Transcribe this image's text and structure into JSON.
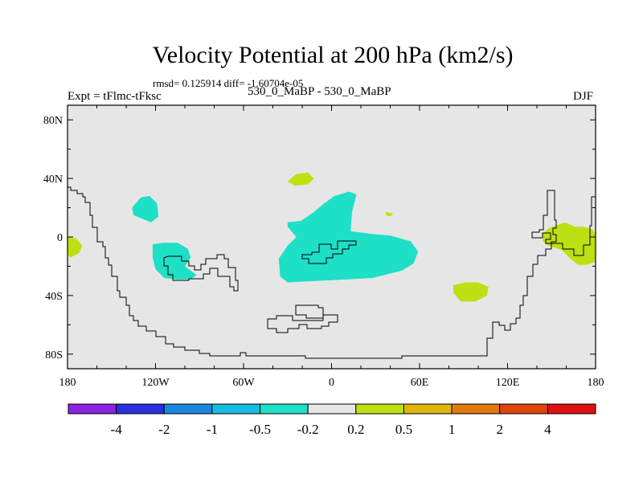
{
  "chart_data": {
    "type": "heatmap",
    "title": "Velocity Potential at 200 hPa (km2/s)",
    "stats": "rmsd= 0.125914 diff= -1.60704e-05",
    "left_label": "Expt = tFlmc-tFksc",
    "center_label": "530_0_MaBP - 530_0_MaBP",
    "right_label": "DJF",
    "x_ticks": [
      {
        "lon": -180,
        "label": "180"
      },
      {
        "lon": -120,
        "label": "120W"
      },
      {
        "lon": -60,
        "label": "60W"
      },
      {
        "lon": 0,
        "label": "0"
      },
      {
        "lon": 60,
        "label": "60E"
      },
      {
        "lon": 120,
        "label": "120E"
      },
      {
        "lon": 180,
        "label": "180"
      }
    ],
    "y_ticks": [
      {
        "lat": 80,
        "label": "80N"
      },
      {
        "lat": 40,
        "label": "40N"
      },
      {
        "lat": 0,
        "label": "0"
      },
      {
        "lat": -40,
        "label": "40S"
      },
      {
        "lat": -80,
        "label": "80S"
      }
    ],
    "xlim": [
      -180,
      180
    ],
    "ylim": [
      -90,
      90
    ],
    "colorbar": {
      "colors": [
        "#8b24e0",
        "#2a2fe0",
        "#1a86e0",
        "#16bde0",
        "#1de0c6",
        "#e6e6e6",
        "#bde012",
        "#e0b40a",
        "#e07a0a",
        "#e0450a",
        "#e01010"
      ],
      "labels": [
        "-4",
        "-2",
        "-1",
        "-0.5",
        "-0.2",
        "0.2",
        "0.5",
        "1",
        "2",
        "4"
      ]
    },
    "regions": [
      {
        "name": "neg-central-pacific",
        "level": "-0.5 to -0.2",
        "color": "#1de0c6",
        "points": [
          [
            -136,
            20
          ],
          [
            -130,
            27
          ],
          [
            -124,
            28
          ],
          [
            -119,
            23
          ],
          [
            -118,
            14
          ],
          [
            -123,
            10
          ],
          [
            -128,
            12
          ],
          [
            -135,
            15
          ]
        ]
      },
      {
        "name": "neg-south-america-west",
        "level": "-0.5 to -0.2",
        "color": "#1de0c6",
        "points": [
          [
            -122,
            -5
          ],
          [
            -115,
            -4
          ],
          [
            -105,
            -4
          ],
          [
            -98,
            -8
          ],
          [
            -96,
            -14
          ],
          [
            -100,
            -20
          ],
          [
            -92,
            -26
          ],
          [
            -96,
            -29
          ],
          [
            -106,
            -29
          ],
          [
            -114,
            -28
          ],
          [
            -120,
            -22
          ],
          [
            -122,
            -14
          ]
        ]
      },
      {
        "name": "neg-africa",
        "level": "-0.5 to -0.2",
        "color": "#1de0c6",
        "points": [
          [
            -30,
            10
          ],
          [
            -21,
            11
          ],
          [
            -12,
            17
          ],
          [
            -5,
            23
          ],
          [
            2,
            28
          ],
          [
            12,
            31
          ],
          [
            17,
            29
          ],
          [
            14,
            17
          ],
          [
            13,
            4
          ],
          [
            28,
            2
          ],
          [
            40,
            1
          ],
          [
            54,
            -3
          ],
          [
            59,
            -10
          ],
          [
            56,
            -18
          ],
          [
            48,
            -23
          ],
          [
            28,
            -28
          ],
          [
            11,
            -29
          ],
          [
            -10,
            -30
          ],
          [
            -30,
            -31
          ],
          [
            -35,
            -27
          ],
          [
            -36,
            -15
          ],
          [
            -30,
            -6
          ],
          [
            -24,
            0
          ],
          [
            -30,
            7
          ]
        ]
      },
      {
        "name": "pos-north-atlantic",
        "level": "0.2 to 0.5",
        "color": "#bde012",
        "points": [
          [
            -30,
            38
          ],
          [
            -24,
            43
          ],
          [
            -16,
            44
          ],
          [
            -12,
            40
          ],
          [
            -16,
            36
          ],
          [
            -25,
            35
          ]
        ]
      },
      {
        "name": "pos-small-dot",
        "level": "0.2 to 0.5",
        "color": "#bde012",
        "points": [
          [
            37,
            17
          ],
          [
            42,
            16
          ],
          [
            40,
            14
          ],
          [
            37,
            15
          ]
        ]
      },
      {
        "name": "pos-indian-ocean",
        "level": "0.2 to 0.5",
        "color": "#bde012",
        "points": [
          [
            83,
            -33
          ],
          [
            91,
            -31
          ],
          [
            100,
            -31
          ],
          [
            107,
            -34
          ],
          [
            106,
            -40
          ],
          [
            98,
            -44
          ],
          [
            88,
            -44
          ],
          [
            83,
            -38
          ]
        ]
      },
      {
        "name": "pos-west-edge",
        "level": "0.2 to 0.5",
        "color": "#bde012",
        "points": [
          [
            -180,
            0
          ],
          [
            -174,
            -1
          ],
          [
            -170,
            -6
          ],
          [
            -172,
            -11
          ],
          [
            -178,
            -14
          ],
          [
            -180,
            -12
          ]
        ]
      },
      {
        "name": "pos-west-pacific",
        "level": "0.2 to 0.5",
        "color": "#bde012",
        "points": [
          [
            144,
            2
          ],
          [
            148,
            6
          ],
          [
            159,
            10
          ],
          [
            166,
            7
          ],
          [
            172,
            7
          ],
          [
            178,
            5
          ],
          [
            180,
            2
          ],
          [
            180,
            -17
          ],
          [
            174,
            -19
          ],
          [
            168,
            -19
          ],
          [
            162,
            -14
          ],
          [
            157,
            -9
          ],
          [
            148,
            -6
          ],
          [
            144,
            -3
          ]
        ]
      }
    ]
  }
}
